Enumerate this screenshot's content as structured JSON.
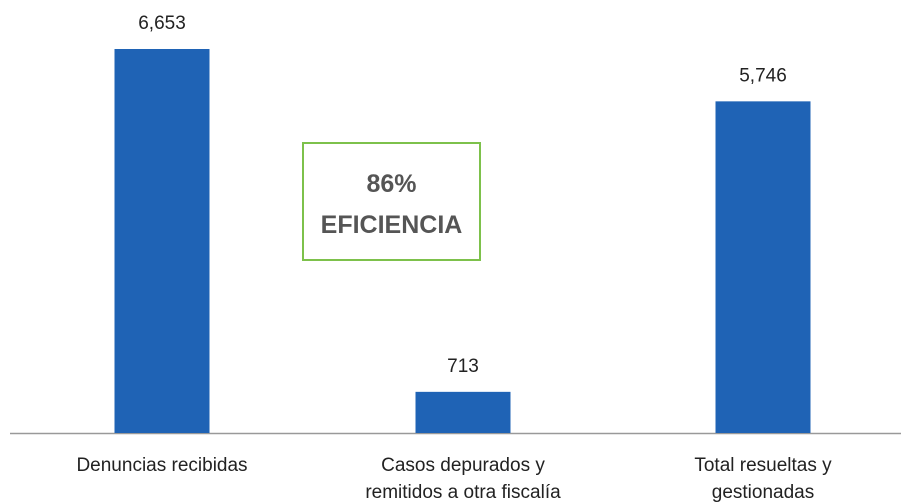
{
  "chart_data": {
    "type": "bar",
    "categories": [
      "Denuncias recibidas",
      "Casos depurados y remitidos a otra fiscalía",
      "Total resueltas y gestionadas"
    ],
    "values": [
      6653,
      713,
      5746
    ],
    "value_labels": [
      "6,653",
      "713",
      "5,746"
    ],
    "color": "#1f63b5",
    "annotation": {
      "value": "86%",
      "label": "EFICIENCIA",
      "border_color": "#7dc14b"
    }
  }
}
